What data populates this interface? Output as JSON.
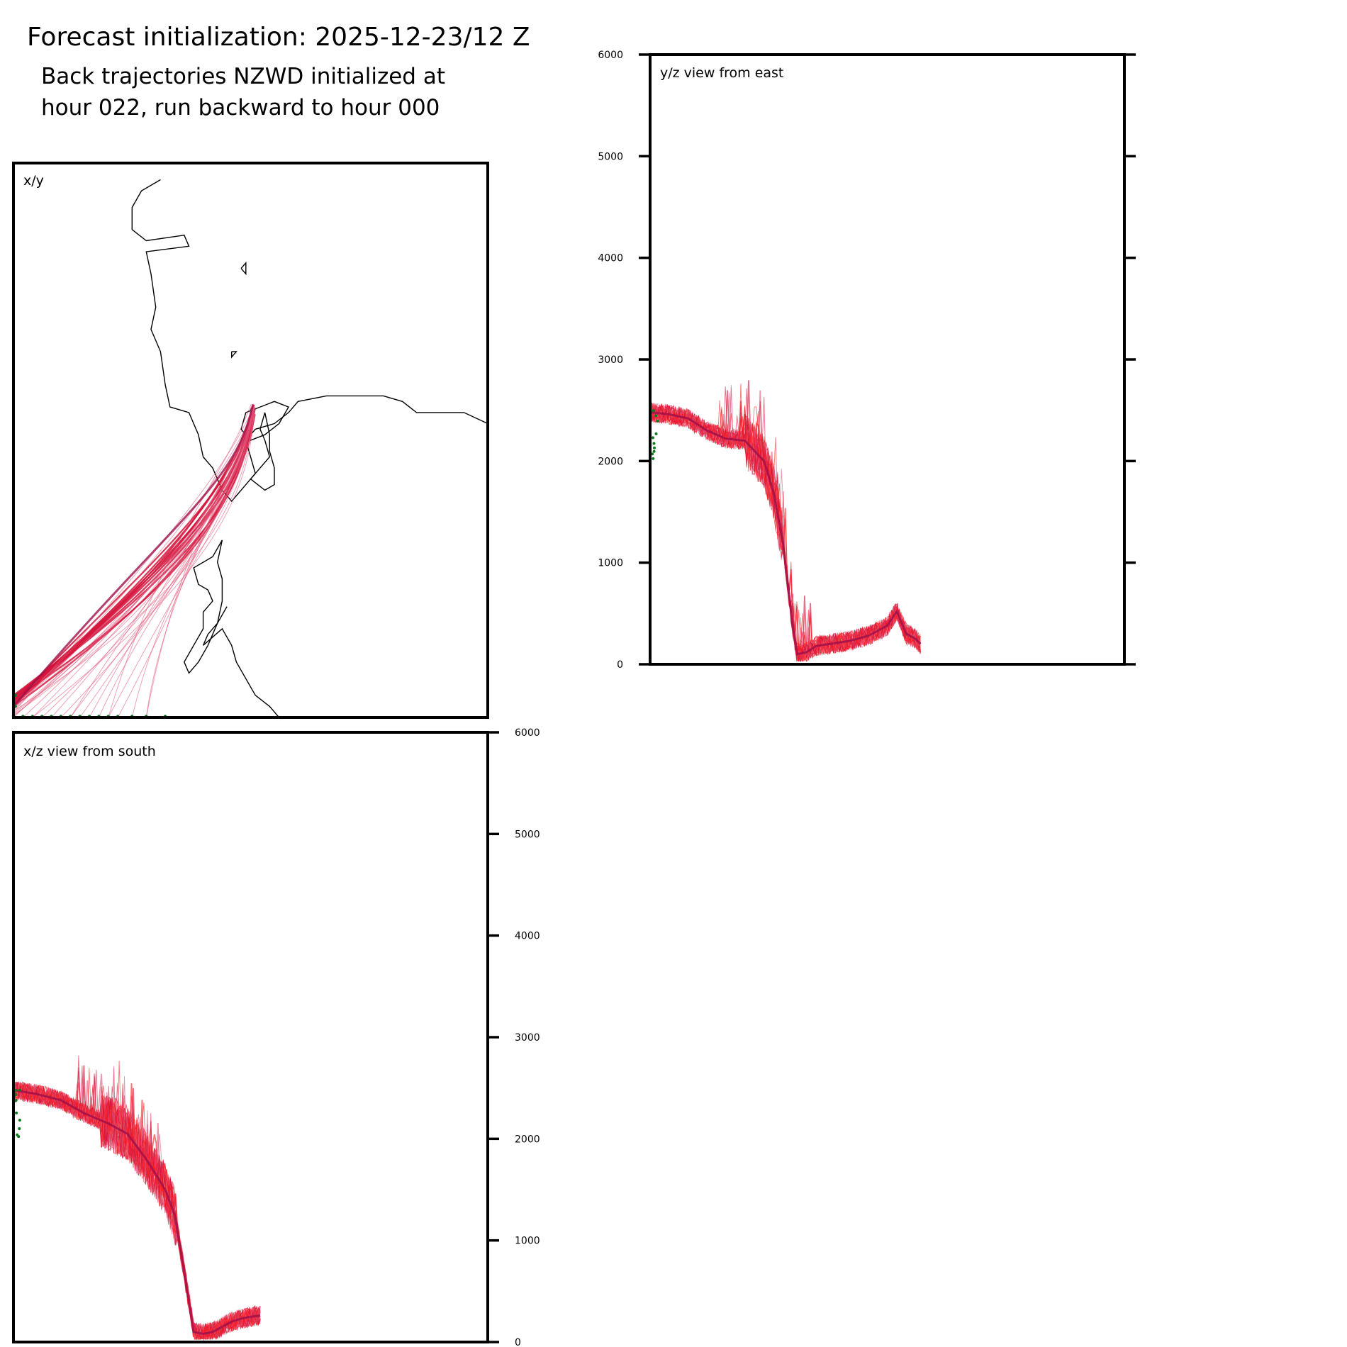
{
  "header": {
    "title": "Forecast initialization: 2025-12-23/12 Z",
    "subtitle_line1": "Back trajectories NZWD initialized at",
    "subtitle_line2": "hour 022, run backward to hour 000"
  },
  "colors": {
    "trajectory_main": "#d4133a",
    "trajectory_light": "#e0557a",
    "trajectory_late": "#ff1a1a",
    "trajectory_dark": "#a0104a",
    "start_marker": "#0a7a1a",
    "coastline": "#000000",
    "frame": "#000000"
  },
  "chart_data": [
    {
      "type": "line",
      "name": "xy",
      "title": "x/y",
      "description_units": "map view, relative map coordinates 0-100",
      "coastlines": [
        {
          "name": "western-coast",
          "points": [
            [
              31,
              3
            ],
            [
              27,
              5
            ],
            [
              25,
              8
            ],
            [
              25,
              12
            ],
            [
              28,
              14
            ],
            [
              36,
              13
            ],
            [
              37,
              15
            ],
            [
              28,
              16
            ],
            [
              29,
              20
            ],
            [
              30,
              26
            ],
            [
              29,
              30
            ],
            [
              31,
              34
            ],
            [
              32,
              40
            ],
            [
              33,
              44
            ],
            [
              37,
              45
            ],
            [
              39,
              49
            ],
            [
              40,
              53
            ],
            [
              42,
              55
            ],
            [
              44,
              59
            ],
            [
              46,
              61
            ],
            [
              48,
              59
            ],
            [
              50,
              57
            ],
            [
              51,
              56
            ]
          ]
        },
        {
          "name": "ross-sea-coast",
          "points": [
            [
              51,
              56
            ],
            [
              50,
              53
            ],
            [
              49,
              50
            ],
            [
              51,
              48
            ],
            [
              55,
              47
            ],
            [
              58,
              45
            ],
            [
              60,
              43
            ],
            [
              66,
              42
            ],
            [
              72,
              42
            ],
            [
              78,
              42
            ],
            [
              82,
              43
            ],
            [
              85,
              45
            ],
            [
              90,
              45
            ],
            [
              95,
              45
            ],
            [
              100,
              47
            ]
          ]
        },
        {
          "name": "ross-island",
          "points": [
            [
              52,
              44
            ],
            [
              49,
              45
            ],
            [
              48,
              48
            ],
            [
              50,
              50
            ],
            [
              53,
              49
            ],
            [
              56,
              47
            ],
            [
              58,
              44
            ],
            [
              55,
              43
            ],
            [
              52,
              44
            ]
          ]
        },
        {
          "name": "peninsula",
          "points": [
            [
              53,
              45
            ],
            [
              52,
              48
            ],
            [
              53,
              50
            ],
            [
              54,
              53
            ],
            [
              52,
              55
            ],
            [
              50,
              57
            ],
            [
              53,
              59
            ],
            [
              55,
              58
            ],
            [
              55,
              55
            ],
            [
              54,
              52
            ],
            [
              54,
              49
            ],
            [
              53,
              45
            ]
          ]
        },
        {
          "name": "southern-coast",
          "points": [
            [
              44,
              68
            ],
            [
              42,
              71
            ],
            [
              38,
              73
            ],
            [
              39,
              76
            ],
            [
              41,
              77
            ],
            [
              42,
              79
            ],
            [
              40,
              81
            ],
            [
              40,
              84
            ],
            [
              38,
              87
            ],
            [
              36,
              90
            ],
            [
              37,
              92
            ],
            [
              39,
              90
            ],
            [
              41,
              87
            ],
            [
              43,
              83
            ],
            [
              44,
              79
            ],
            [
              44,
              75
            ],
            [
              43,
              72
            ],
            [
              44,
              68
            ]
          ]
        },
        {
          "name": "lower-coast",
          "points": [
            [
              45,
              80
            ],
            [
              43,
              83
            ],
            [
              41,
              85
            ],
            [
              40,
              87
            ]
          ]
        },
        {
          "name": "bottom-coast",
          "points": [
            [
              40,
              87
            ],
            [
              44,
              84
            ],
            [
              46,
              87
            ],
            [
              47,
              90
            ],
            [
              49,
              93
            ],
            [
              51,
              96
            ],
            [
              54,
              98
            ],
            [
              56,
              100
            ]
          ]
        },
        {
          "name": "islet-1",
          "points": [
            [
              48,
              19
            ],
            [
              49,
              18
            ],
            [
              49,
              20
            ],
            [
              48,
              19
            ]
          ]
        },
        {
          "name": "islet-2",
          "points": [
            [
              46,
              34
            ],
            [
              47,
              34
            ],
            [
              46,
              35
            ],
            [
              46,
              34
            ]
          ]
        }
      ],
      "trajectory_bundle": {
        "end_point": [
          50.5,
          43.5
        ],
        "start_points_x_along_bottom": [
          0,
          2,
          4,
          6,
          8,
          10,
          12,
          14,
          16,
          18,
          20,
          22,
          25,
          28,
          32
        ],
        "start_point_y_left_edge": [
          96,
          98,
          100
        ]
      }
    },
    {
      "type": "line",
      "name": "yz",
      "title": "y/z view from east",
      "ylabel": "",
      "ylim": [
        0,
        6000
      ],
      "yticks": [
        0,
        1000,
        2000,
        3000,
        4000,
        5000,
        6000
      ],
      "xlim": [
        0,
        100
      ],
      "ensemble_mean": {
        "x": [
          0,
          4,
          8,
          12,
          16,
          20,
          24,
          26,
          28,
          30,
          31,
          33,
          35,
          38,
          42,
          46,
          50,
          52,
          54,
          56,
          57
        ],
        "z": [
          2480,
          2460,
          2420,
          2300,
          2220,
          2200,
          2000,
          1700,
          1200,
          400,
          100,
          120,
          180,
          200,
          230,
          280,
          380,
          520,
          300,
          250,
          200
        ]
      },
      "z_spread_range": [
        50,
        2800
      ]
    },
    {
      "type": "line",
      "name": "xz",
      "title": "x/z view from south",
      "ylabel": "",
      "ylim": [
        0,
        6000
      ],
      "yticks": [
        0,
        1000,
        2000,
        3000,
        4000,
        5000,
        6000
      ],
      "xlim": [
        0,
        100
      ],
      "ensemble_mean": {
        "x": [
          0,
          5,
          10,
          15,
          20,
          24,
          28,
          30,
          32,
          34,
          36,
          38,
          40,
          42,
          44,
          46,
          48,
          50,
          52
        ],
        "z": [
          2480,
          2440,
          2380,
          2250,
          2150,
          2050,
          1800,
          1650,
          1500,
          1250,
          700,
          100,
          80,
          100,
          150,
          200,
          230,
          250,
          260
        ]
      },
      "z_spread_range": [
        50,
        2800
      ]
    }
  ]
}
